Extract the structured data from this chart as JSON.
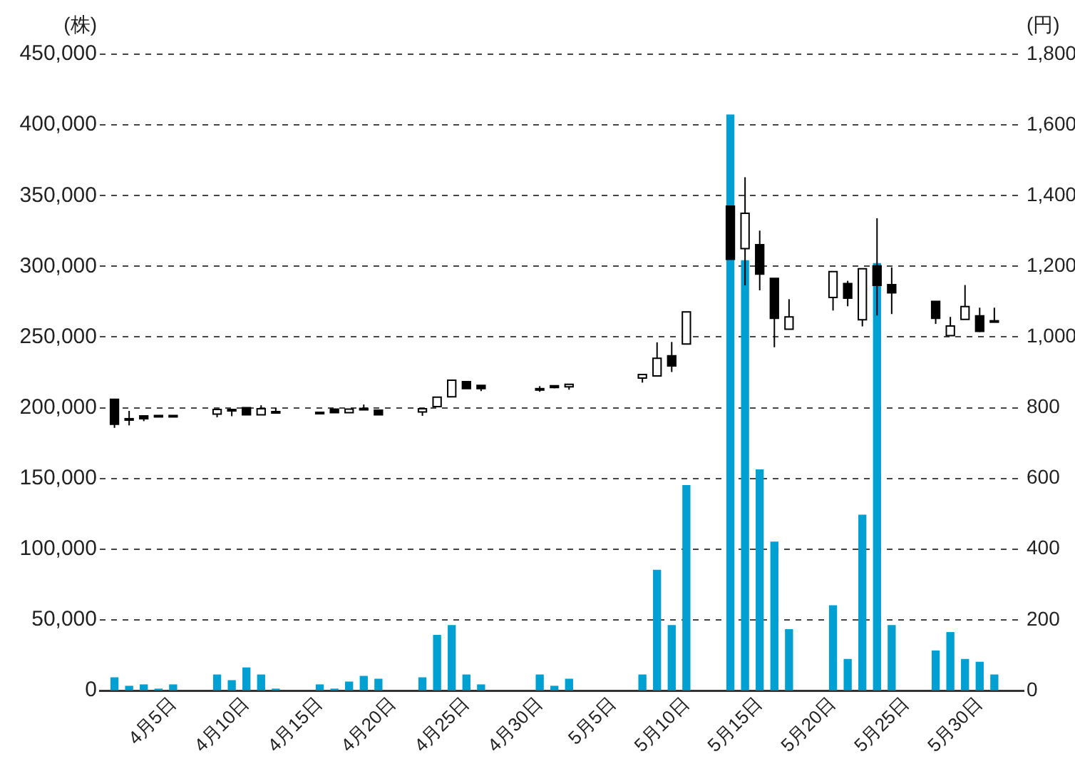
{
  "chart_data": {
    "type": "candlestick",
    "ylabel": "(株)",
    "y2label": "(円)",
    "x": [
      "--04-01",
      "--04-02",
      "--04-03",
      "--04-04",
      "--04-05",
      "--04-08",
      "--04-09",
      "--04-10",
      "--04-11",
      "--04-12",
      "--04-15",
      "--04-16",
      "--04-17",
      "--04-18",
      "--04-19",
      "--04-22",
      "--04-23",
      "--04-24",
      "--04-25",
      "--04-26",
      "--04-30",
      "--05-01",
      "--05-02",
      "--05-07",
      "--05-08",
      "--05-09",
      "--05-10",
      "--05-13",
      "--05-14",
      "--05-15",
      "--05-16",
      "--05-17",
      "--05-20",
      "--05-21",
      "--05-22",
      "--05-23",
      "--05-24",
      "--05-27",
      "--05-28",
      "--05-29",
      "--05-30",
      "--05-31"
    ],
    "xlim": [
      "--03-31",
      "--06-02"
    ],
    "xticks": [
      {
        "value": "--04-05",
        "label": "4月5日"
      },
      {
        "value": "--04-10",
        "label": "4月10日"
      },
      {
        "value": "--04-15",
        "label": "4月15日"
      },
      {
        "value": "--04-20",
        "label": "4月20日"
      },
      {
        "value": "--04-25",
        "label": "4月25日"
      },
      {
        "value": "--04-30",
        "label": "4月30日"
      },
      {
        "value": "--05-05",
        "label": "5月5日"
      },
      {
        "value": "--05-10",
        "label": "5月10日"
      },
      {
        "value": "--05-15",
        "label": "5月15日"
      },
      {
        "value": "--05-20",
        "label": "5月20日"
      },
      {
        "value": "--05-25",
        "label": "5月25日"
      },
      {
        "value": "--05-30",
        "label": "5月30日"
      }
    ],
    "ylim": [
      0,
      450000
    ],
    "yticks": [
      0,
      {
        "value": 50000,
        "label": "50,000"
      },
      {
        "value": 100000,
        "label": "100,000"
      },
      {
        "value": 150000,
        "label": "150,000"
      },
      {
        "value": 200000,
        "label": "200,000"
      },
      {
        "value": 250000,
        "label": "250,000"
      },
      {
        "value": 300000,
        "label": "300,000"
      },
      {
        "value": 350000,
        "label": "350,000"
      },
      {
        "value": 400000,
        "label": "400,000"
      },
      {
        "value": 450000,
        "label": "450,000"
      }
    ],
    "y2lim": [
      0,
      1800
    ],
    "y2ticks": [
      0,
      200,
      400,
      600,
      800,
      {
        "value": 1000,
        "label": "1,000"
      },
      {
        "value": 1200,
        "label": "1,200"
      },
      {
        "value": 1400,
        "label": "1,400"
      },
      {
        "value": 1600,
        "label": "1,600"
      },
      {
        "value": 1800,
        "label": "1,800"
      }
    ],
    "grid": "y",
    "series": [
      {
        "type": "bar",
        "color": "#00a0d2",
        "values": [
          9000,
          3000,
          4000,
          1000,
          4000,
          11000,
          7000,
          16000,
          11000,
          1000,
          4000,
          1000,
          6000,
          10000,
          8000,
          9000,
          39000,
          46000,
          11000,
          4000,
          11000,
          3000,
          8000,
          11000,
          85000,
          46000,
          145000,
          407000,
          304000,
          156000,
          105000,
          43000,
          60000,
          22000,
          124000,
          302000,
          46000,
          28000,
          41000,
          22000,
          20000,
          11000
        ]
      },
      {
        "axis": "y2",
        "color": "#000000",
        "colors": [
          "#000000",
          "#000000",
          "#000000",
          "#000000",
          "#000000",
          "#ffffff",
          "#000000",
          "#000000",
          "#ffffff",
          "#000000",
          "#000000",
          "#000000",
          "#ffffff",
          "#000000",
          "#000000",
          "#ffffff",
          "#ffffff",
          "#ffffff",
          "#000000",
          "#000000",
          "#000000",
          "#000000",
          "#ffffff",
          "#ffffff",
          "#ffffff",
          "#000000",
          "#ffffff",
          "#000000",
          "#ffffff",
          "#000000",
          "#000000",
          "#ffffff",
          "#ffffff",
          "#000000",
          "#ffffff",
          "#000000",
          "#000000",
          "#000000",
          "#ffffff",
          "#ffffff",
          "#000000",
          "#000000"
        ],
        "ohlc": [
          [
            824,
            824,
            743,
            753
          ],
          [
            769,
            791,
            750,
            769
          ],
          [
            777,
            777,
            762,
            769
          ],
          [
            778,
            778,
            776,
            776
          ],
          [
            778,
            778,
            775,
            776
          ],
          [
            782,
            795,
            773,
            795
          ],
          [
            795,
            795,
            776,
            795
          ],
          [
            800,
            800,
            780,
            780
          ],
          [
            780,
            807,
            780,
            797
          ],
          [
            789,
            799,
            788,
            788
          ],
          [
            787,
            787,
            786,
            786
          ],
          [
            796,
            796,
            786,
            786
          ],
          [
            786,
            796,
            786,
            796
          ],
          [
            798,
            809,
            797,
            797
          ],
          [
            793,
            793,
            780,
            780
          ],
          [
            788,
            797,
            777,
            797
          ],
          [
            803,
            830,
            803,
            830
          ],
          [
            831,
            878,
            831,
            878
          ],
          [
            874,
            874,
            854,
            854
          ],
          [
            863,
            863,
            847,
            854
          ],
          [
            854,
            861,
            845,
            853
          ],
          [
            862,
            862,
            855,
            857
          ],
          [
            859,
            866,
            851,
            866
          ],
          [
            884,
            895,
            871,
            894
          ],
          [
            890,
            985,
            890,
            940
          ],
          [
            947,
            986,
            901,
            918
          ],
          [
            980,
            1071,
            980,
            1071
          ],
          [
            1370,
            1370,
            1220,
            1220
          ],
          [
            1250,
            1452,
            1146,
            1350
          ],
          [
            1261,
            1301,
            1132,
            1178
          ],
          [
            1166,
            1166,
            971,
            1053
          ],
          [
            1022,
            1107,
            1022,
            1057
          ],
          [
            1112,
            1185,
            1075,
            1185
          ],
          [
            1151,
            1159,
            1087,
            1110
          ],
          [
            1049,
            1193,
            1030,
            1193
          ],
          [
            1201,
            1336,
            1061,
            1146
          ],
          [
            1148,
            1197,
            1065,
            1125
          ],
          [
            1101,
            1101,
            1037,
            1053
          ],
          [
            1004,
            1057,
            1004,
            1031
          ],
          [
            1050,
            1147,
            1050,
            1086
          ],
          [
            1060,
            1083,
            1014,
            1016
          ],
          [
            1046,
            1083,
            1042,
            1044
          ]
        ]
      }
    ]
  }
}
